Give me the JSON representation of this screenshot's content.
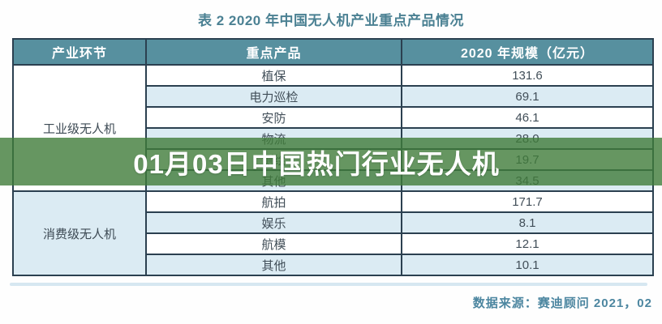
{
  "title": "表 2  2020 年中国无人机产业重点产品情况",
  "banner": {
    "text": "01月03日中国热门行业无人机",
    "overlay_color": "#407c39",
    "overlay_opacity": 0.8,
    "text_color": "#ffffff"
  },
  "table": {
    "headers": [
      "产业环节",
      "重点产品",
      "2020 年规模（亿元）"
    ],
    "sections": [
      {
        "category": "工业级无人机",
        "rows": [
          {
            "product": "植保",
            "value": "131.6"
          },
          {
            "product": "电力巡检",
            "value": "69.1"
          },
          {
            "product": "安防",
            "value": "46.1"
          },
          {
            "product": "物流",
            "value": "28.0"
          },
          {
            "product": "测绘",
            "value": "19.7"
          },
          {
            "product": "其他",
            "value": "34.5"
          }
        ]
      },
      {
        "category": "消费级无人机",
        "rows": [
          {
            "product": "航拍",
            "value": "171.7"
          },
          {
            "product": "娱乐",
            "value": "8.1"
          },
          {
            "product": "航模",
            "value": "12.1"
          },
          {
            "product": "其他",
            "value": "10.1"
          }
        ]
      }
    ]
  },
  "footer": {
    "source": "数据来源：赛迪顾问  2021，02"
  },
  "colors": {
    "header_bg": "#57909f",
    "row_alt_bg": "#dbebf3",
    "border": "#2b4050",
    "title_text": "#4b8193",
    "footer_text": "#4c86a0",
    "cell_text": "#414e58",
    "banner_overlay": "#407c39"
  },
  "chart_data": {
    "type": "table",
    "title": "表 2  2020 年中国无人机产业重点产品情况",
    "columns": [
      "产业环节",
      "重点产品",
      "2020 年规模（亿元）"
    ],
    "rows": [
      [
        "工业级无人机",
        "植保",
        131.6
      ],
      [
        "工业级无人机",
        "电力巡检",
        69.1
      ],
      [
        "工业级无人机",
        "安防",
        46.1
      ],
      [
        "工业级无人机",
        "物流",
        28.0
      ],
      [
        "工业级无人机",
        "测绘",
        19.7
      ],
      [
        "工业级无人机",
        "其他",
        34.5
      ],
      [
        "消费级无人机",
        "航拍",
        171.7
      ],
      [
        "消费级无人机",
        "娱乐",
        8.1
      ],
      [
        "消费级无人机",
        "航模",
        12.1
      ],
      [
        "消费级无人机",
        "其他",
        10.1
      ]
    ],
    "source": "数据来源：赛迪顾问  2021，02"
  }
}
